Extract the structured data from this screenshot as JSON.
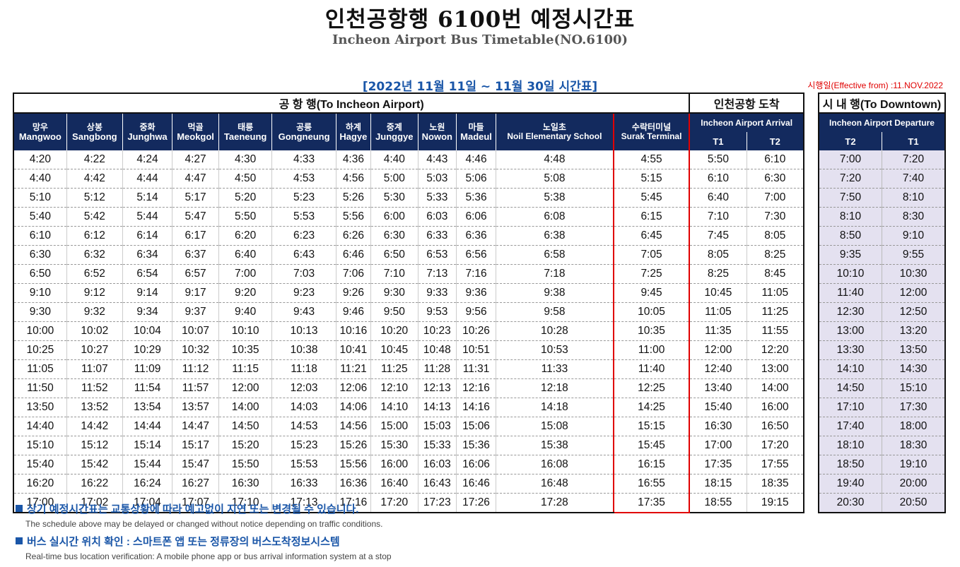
{
  "title_ko": "인천공항행 6100번 예정시간표",
  "title_en": "Incheon Airport Bus Timetable(NO.6100)",
  "period": "[2022년 11월 11일 ~ 11월 30일 시간표]",
  "effective": "시행일(Effective from) :11.NOV.2022",
  "groups": {
    "to_airport": "공 항 행(To Incheon Airport)",
    "arrival": "인천공항 도착",
    "to_downtown": "시 내 행(To Downtown)"
  },
  "arrival_sub": "Incheon Airport Arrival",
  "departure_sub": "Incheon Airport Departure",
  "stops": [
    {
      "ko": "망우",
      "en": "Mangwoo"
    },
    {
      "ko": "상봉",
      "en": "Sangbong"
    },
    {
      "ko": "중화",
      "en": "Junghwa"
    },
    {
      "ko": "먹골",
      "en": "Meokgol"
    },
    {
      "ko": "태릉",
      "en": "Taeneung"
    },
    {
      "ko": "공릉",
      "en": "Gongneung"
    },
    {
      "ko": "하계",
      "en": "Hagye"
    },
    {
      "ko": "중계",
      "en": "Junggye"
    },
    {
      "ko": "노원",
      "en": "Nowon"
    },
    {
      "ko": "마들",
      "en": "Madeul"
    },
    {
      "ko": "노일초",
      "en": "Noil Elementary School"
    },
    {
      "ko": "수락터미널",
      "en": "Surak Terminal"
    }
  ],
  "arrival_terminals": [
    "T1",
    "T2"
  ],
  "departure_terminals": [
    "T2",
    "T1"
  ],
  "to_airport_rows": [
    [
      "4:20",
      "4:22",
      "4:24",
      "4:27",
      "4:30",
      "4:33",
      "4:36",
      "4:40",
      "4:43",
      "4:46",
      "4:48",
      "4:55",
      "5:50",
      "6:10"
    ],
    [
      "4:40",
      "4:42",
      "4:44",
      "4:47",
      "4:50",
      "4:53",
      "4:56",
      "5:00",
      "5:03",
      "5:06",
      "5:08",
      "5:15",
      "6:10",
      "6:30"
    ],
    [
      "5:10",
      "5:12",
      "5:14",
      "5:17",
      "5:20",
      "5:23",
      "5:26",
      "5:30",
      "5:33",
      "5:36",
      "5:38",
      "5:45",
      "6:40",
      "7:00"
    ],
    [
      "5:40",
      "5:42",
      "5:44",
      "5:47",
      "5:50",
      "5:53",
      "5:56",
      "6:00",
      "6:03",
      "6:06",
      "6:08",
      "6:15",
      "7:10",
      "7:30"
    ],
    [
      "6:10",
      "6:12",
      "6:14",
      "6:17",
      "6:20",
      "6:23",
      "6:26",
      "6:30",
      "6:33",
      "6:36",
      "6:38",
      "6:45",
      "7:45",
      "8:05"
    ],
    [
      "6:30",
      "6:32",
      "6:34",
      "6:37",
      "6:40",
      "6:43",
      "6:46",
      "6:50",
      "6:53",
      "6:56",
      "6:58",
      "7:05",
      "8:05",
      "8:25"
    ],
    [
      "6:50",
      "6:52",
      "6:54",
      "6:57",
      "7:00",
      "7:03",
      "7:06",
      "7:10",
      "7:13",
      "7:16",
      "7:18",
      "7:25",
      "8:25",
      "8:45"
    ],
    [
      "9:10",
      "9:12",
      "9:14",
      "9:17",
      "9:20",
      "9:23",
      "9:26",
      "9:30",
      "9:33",
      "9:36",
      "9:38",
      "9:45",
      "10:45",
      "11:05"
    ],
    [
      "9:30",
      "9:32",
      "9:34",
      "9:37",
      "9:40",
      "9:43",
      "9:46",
      "9:50",
      "9:53",
      "9:56",
      "9:58",
      "10:05",
      "11:05",
      "11:25"
    ],
    [
      "10:00",
      "10:02",
      "10:04",
      "10:07",
      "10:10",
      "10:13",
      "10:16",
      "10:20",
      "10:23",
      "10:26",
      "10:28",
      "10:35",
      "11:35",
      "11:55"
    ],
    [
      "10:25",
      "10:27",
      "10:29",
      "10:32",
      "10:35",
      "10:38",
      "10:41",
      "10:45",
      "10:48",
      "10:51",
      "10:53",
      "11:00",
      "12:00",
      "12:20"
    ],
    [
      "11:05",
      "11:07",
      "11:09",
      "11:12",
      "11:15",
      "11:18",
      "11:21",
      "11:25",
      "11:28",
      "11:31",
      "11:33",
      "11:40",
      "12:40",
      "13:00"
    ],
    [
      "11:50",
      "11:52",
      "11:54",
      "11:57",
      "12:00",
      "12:03",
      "12:06",
      "12:10",
      "12:13",
      "12:16",
      "12:18",
      "12:25",
      "13:40",
      "14:00"
    ],
    [
      "13:50",
      "13:52",
      "13:54",
      "13:57",
      "14:00",
      "14:03",
      "14:06",
      "14:10",
      "14:13",
      "14:16",
      "14:18",
      "14:25",
      "15:40",
      "16:00"
    ],
    [
      "14:40",
      "14:42",
      "14:44",
      "14:47",
      "14:50",
      "14:53",
      "14:56",
      "15:00",
      "15:03",
      "15:06",
      "15:08",
      "15:15",
      "16:30",
      "16:50"
    ],
    [
      "15:10",
      "15:12",
      "15:14",
      "15:17",
      "15:20",
      "15:23",
      "15:26",
      "15:30",
      "15:33",
      "15:36",
      "15:38",
      "15:45",
      "17:00",
      "17:20"
    ],
    [
      "15:40",
      "15:42",
      "15:44",
      "15:47",
      "15:50",
      "15:53",
      "15:56",
      "16:00",
      "16:03",
      "16:06",
      "16:08",
      "16:15",
      "17:35",
      "17:55"
    ],
    [
      "16:20",
      "16:22",
      "16:24",
      "16:27",
      "16:30",
      "16:33",
      "16:36",
      "16:40",
      "16:43",
      "16:46",
      "16:48",
      "16:55",
      "18:15",
      "18:35"
    ],
    [
      "17:00",
      "17:02",
      "17:04",
      "17:07",
      "17:10",
      "17:13",
      "17:16",
      "17:20",
      "17:23",
      "17:26",
      "17:28",
      "17:35",
      "18:55",
      "19:15"
    ]
  ],
  "to_downtown_rows": [
    [
      "7:00",
      "7:20"
    ],
    [
      "7:20",
      "7:40"
    ],
    [
      "7:50",
      "8:10"
    ],
    [
      "8:10",
      "8:30"
    ],
    [
      "8:50",
      "9:10"
    ],
    [
      "9:35",
      "9:55"
    ],
    [
      "10:10",
      "10:30"
    ],
    [
      "11:40",
      "12:00"
    ],
    [
      "12:30",
      "12:50"
    ],
    [
      "13:00",
      "13:20"
    ],
    [
      "13:30",
      "13:50"
    ],
    [
      "14:10",
      "14:30"
    ],
    [
      "14:50",
      "15:10"
    ],
    [
      "17:10",
      "17:30"
    ],
    [
      "17:40",
      "18:00"
    ],
    [
      "18:10",
      "18:30"
    ],
    [
      "18:50",
      "19:10"
    ],
    [
      "19:40",
      "20:00"
    ],
    [
      "20:30",
      "20:50"
    ]
  ],
  "notes": [
    {
      "ko": "상기 예정시간표는 교통상황에 따라 예고없이 지연 또는 변경될 수 있습니다.",
      "en": "The schedule above may be delayed or changed without notice depending on traffic conditions."
    },
    {
      "ko": "버스 실시간 위치 확인 : 스마트폰 앱 또는 정류장의 버스도착정보시스템",
      "en": "Real-time bus location verification: A mobile phone app or bus arrival information system at a stop"
    }
  ],
  "colors": {
    "header_bg": "#132a5e",
    "accent_blue": "#1a56a8",
    "highlight_red": "#e00000",
    "downtown_bg": "#e4e1f0"
  }
}
